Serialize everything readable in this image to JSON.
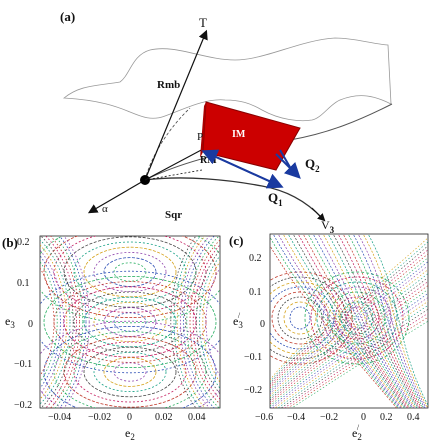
{
  "figure": {
    "panel_a": {
      "panel_label": "(a)",
      "axis_labels": {
        "t": "T",
        "alpha": "α",
        "v3": "V",
        "v3_sub": "3"
      },
      "region_labels": {
        "rmb": "Rmb",
        "sqr": "Sqr",
        "im": "IM",
        "rm": "RM",
        "p": "P"
      },
      "vector_labels": {
        "q1": "Q",
        "q1_sub": "1",
        "q2": "Q",
        "q2_sub": "2"
      },
      "colors": {
        "im_fill": "#cc0000",
        "vector": "#1a3aa0"
      }
    },
    "panel_b": {
      "panel_label": "(b)",
      "xlabel": "e",
      "xlabel_sub": "2",
      "ylabel": "e",
      "ylabel_sub": "3",
      "xticks": [
        "−0.04",
        "−0.02",
        "0",
        "0.02",
        "0.04"
      ],
      "yticks": [
        "0.2",
        "0.1",
        "0",
        "−0.1",
        "−0.2"
      ]
    },
    "panel_c": {
      "panel_label": "(c)",
      "xlabel": "e",
      "xlabel_sub": "2",
      "xlabel_prime": "/",
      "ylabel": "e",
      "ylabel_sub": "3",
      "ylabel_prime": "/",
      "xticks": [
        "−0.6",
        "−0.4",
        "−0.2",
        "0",
        "0.2",
        "0.4"
      ],
      "yticks": [
        "0.2",
        "0.1",
        "0",
        "−0.1",
        "−0.2"
      ]
    }
  }
}
